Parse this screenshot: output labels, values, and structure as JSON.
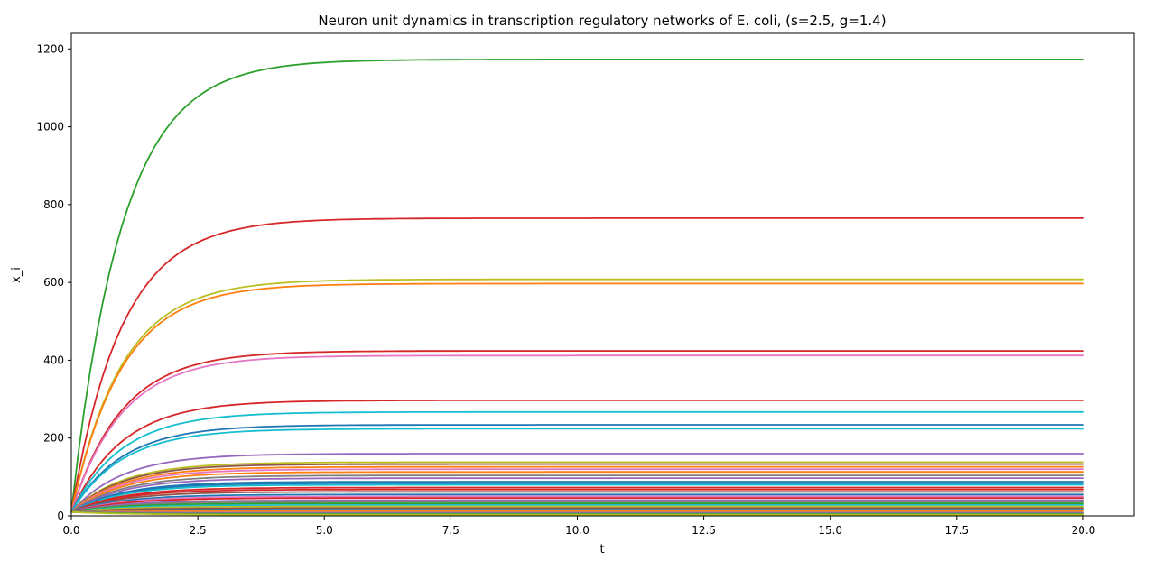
{
  "chart_data": {
    "type": "line",
    "title": "Neuron unit dynamics in transcription regulatory networks of E. coli, (s=2.5, g=1.4)",
    "xlabel": "t",
    "ylabel": "x_i",
    "xlim": [
      0,
      21
    ],
    "ylim": [
      0,
      1240
    ],
    "xticks": [
      "0.0",
      "2.5",
      "5.0",
      "7.5",
      "10.0",
      "12.5",
      "15.0",
      "17.5",
      "20.0"
    ],
    "yticks": [
      "0",
      "200",
      "400",
      "600",
      "800",
      "1000",
      "1200"
    ],
    "grid": false,
    "legend": "none",
    "t_range": [
      0,
      20
    ],
    "dynamics": "x(t) = final * (1 - exp(-rate * t)); initial value 10",
    "series": [
      {
        "final": 1173,
        "rate": 1.0,
        "color": "#2ca02c"
      },
      {
        "final": 765,
        "rate": 1.0,
        "color": "#d62728"
      },
      {
        "final": 608,
        "rate": 1.0,
        "color": "#bcbd22"
      },
      {
        "final": 597,
        "rate": 1.0,
        "color": "#ff7f0e"
      },
      {
        "final": 424,
        "rate": 1.0,
        "color": "#d62728"
      },
      {
        "final": 412,
        "rate": 1.0,
        "color": "#e377c2"
      },
      {
        "final": 297,
        "rate": 1.0,
        "color": "#d62728"
      },
      {
        "final": 267,
        "rate": 1.0,
        "color": "#17becf"
      },
      {
        "final": 234,
        "rate": 1.0,
        "color": "#1f77b4"
      },
      {
        "final": 224,
        "rate": 1.0,
        "color": "#17becf"
      },
      {
        "final": 160,
        "rate": 1.0,
        "color": "#9467bd"
      },
      {
        "final": 138,
        "rate": 1.0,
        "color": "#bcbd22"
      },
      {
        "final": 133,
        "rate": 1.0,
        "color": "#8c564b"
      },
      {
        "final": 126,
        "rate": 1.0,
        "color": "#ff7f0e"
      },
      {
        "final": 120,
        "rate": 1.0,
        "color": "#e377c2"
      },
      {
        "final": 113,
        "rate": 1.0,
        "color": "#ff7f0e"
      },
      {
        "final": 104,
        "rate": 1.0,
        "color": "#7f7f7f"
      },
      {
        "final": 97,
        "rate": 1.0,
        "color": "#9467bd"
      },
      {
        "final": 88,
        "rate": 1.0,
        "color": "#1f77b4"
      },
      {
        "final": 84,
        "rate": 1.0,
        "color": "#1f77b4"
      },
      {
        "final": 80,
        "rate": 1.0,
        "color": "#17becf"
      },
      {
        "final": 73,
        "rate": 1.0,
        "color": "#d62728"
      },
      {
        "final": 68,
        "rate": 1.0,
        "color": "#d62728"
      },
      {
        "final": 62,
        "rate": 1.0,
        "color": "#8c564b"
      },
      {
        "final": 55,
        "rate": 1.0,
        "color": "#1f77b4"
      },
      {
        "final": 50,
        "rate": 1.0,
        "color": "#e377c2"
      },
      {
        "final": 46,
        "rate": 1.0,
        "color": "#d62728"
      },
      {
        "final": 40,
        "rate": 1.0,
        "color": "#9467bd"
      },
      {
        "final": 36,
        "rate": 1.0,
        "color": "#7f7f7f"
      },
      {
        "final": 32,
        "rate": 1.0,
        "color": "#2ca02c"
      },
      {
        "final": 28,
        "rate": 1.0,
        "color": "#17becf"
      },
      {
        "final": 24,
        "rate": 1.0,
        "color": "#bcbd22"
      },
      {
        "final": 20,
        "rate": 1.0,
        "color": "#8c564b"
      },
      {
        "final": 16,
        "rate": 1.0,
        "color": "#1f77b4"
      },
      {
        "final": 12,
        "rate": 1.0,
        "color": "#ff7f0e"
      },
      {
        "final": 8,
        "rate": 1.0,
        "color": "#9467bd"
      },
      {
        "final": 5,
        "rate": 1.0,
        "color": "#2ca02c"
      },
      {
        "final": 3,
        "rate": 1.0,
        "color": "#bcbd22"
      }
    ]
  }
}
